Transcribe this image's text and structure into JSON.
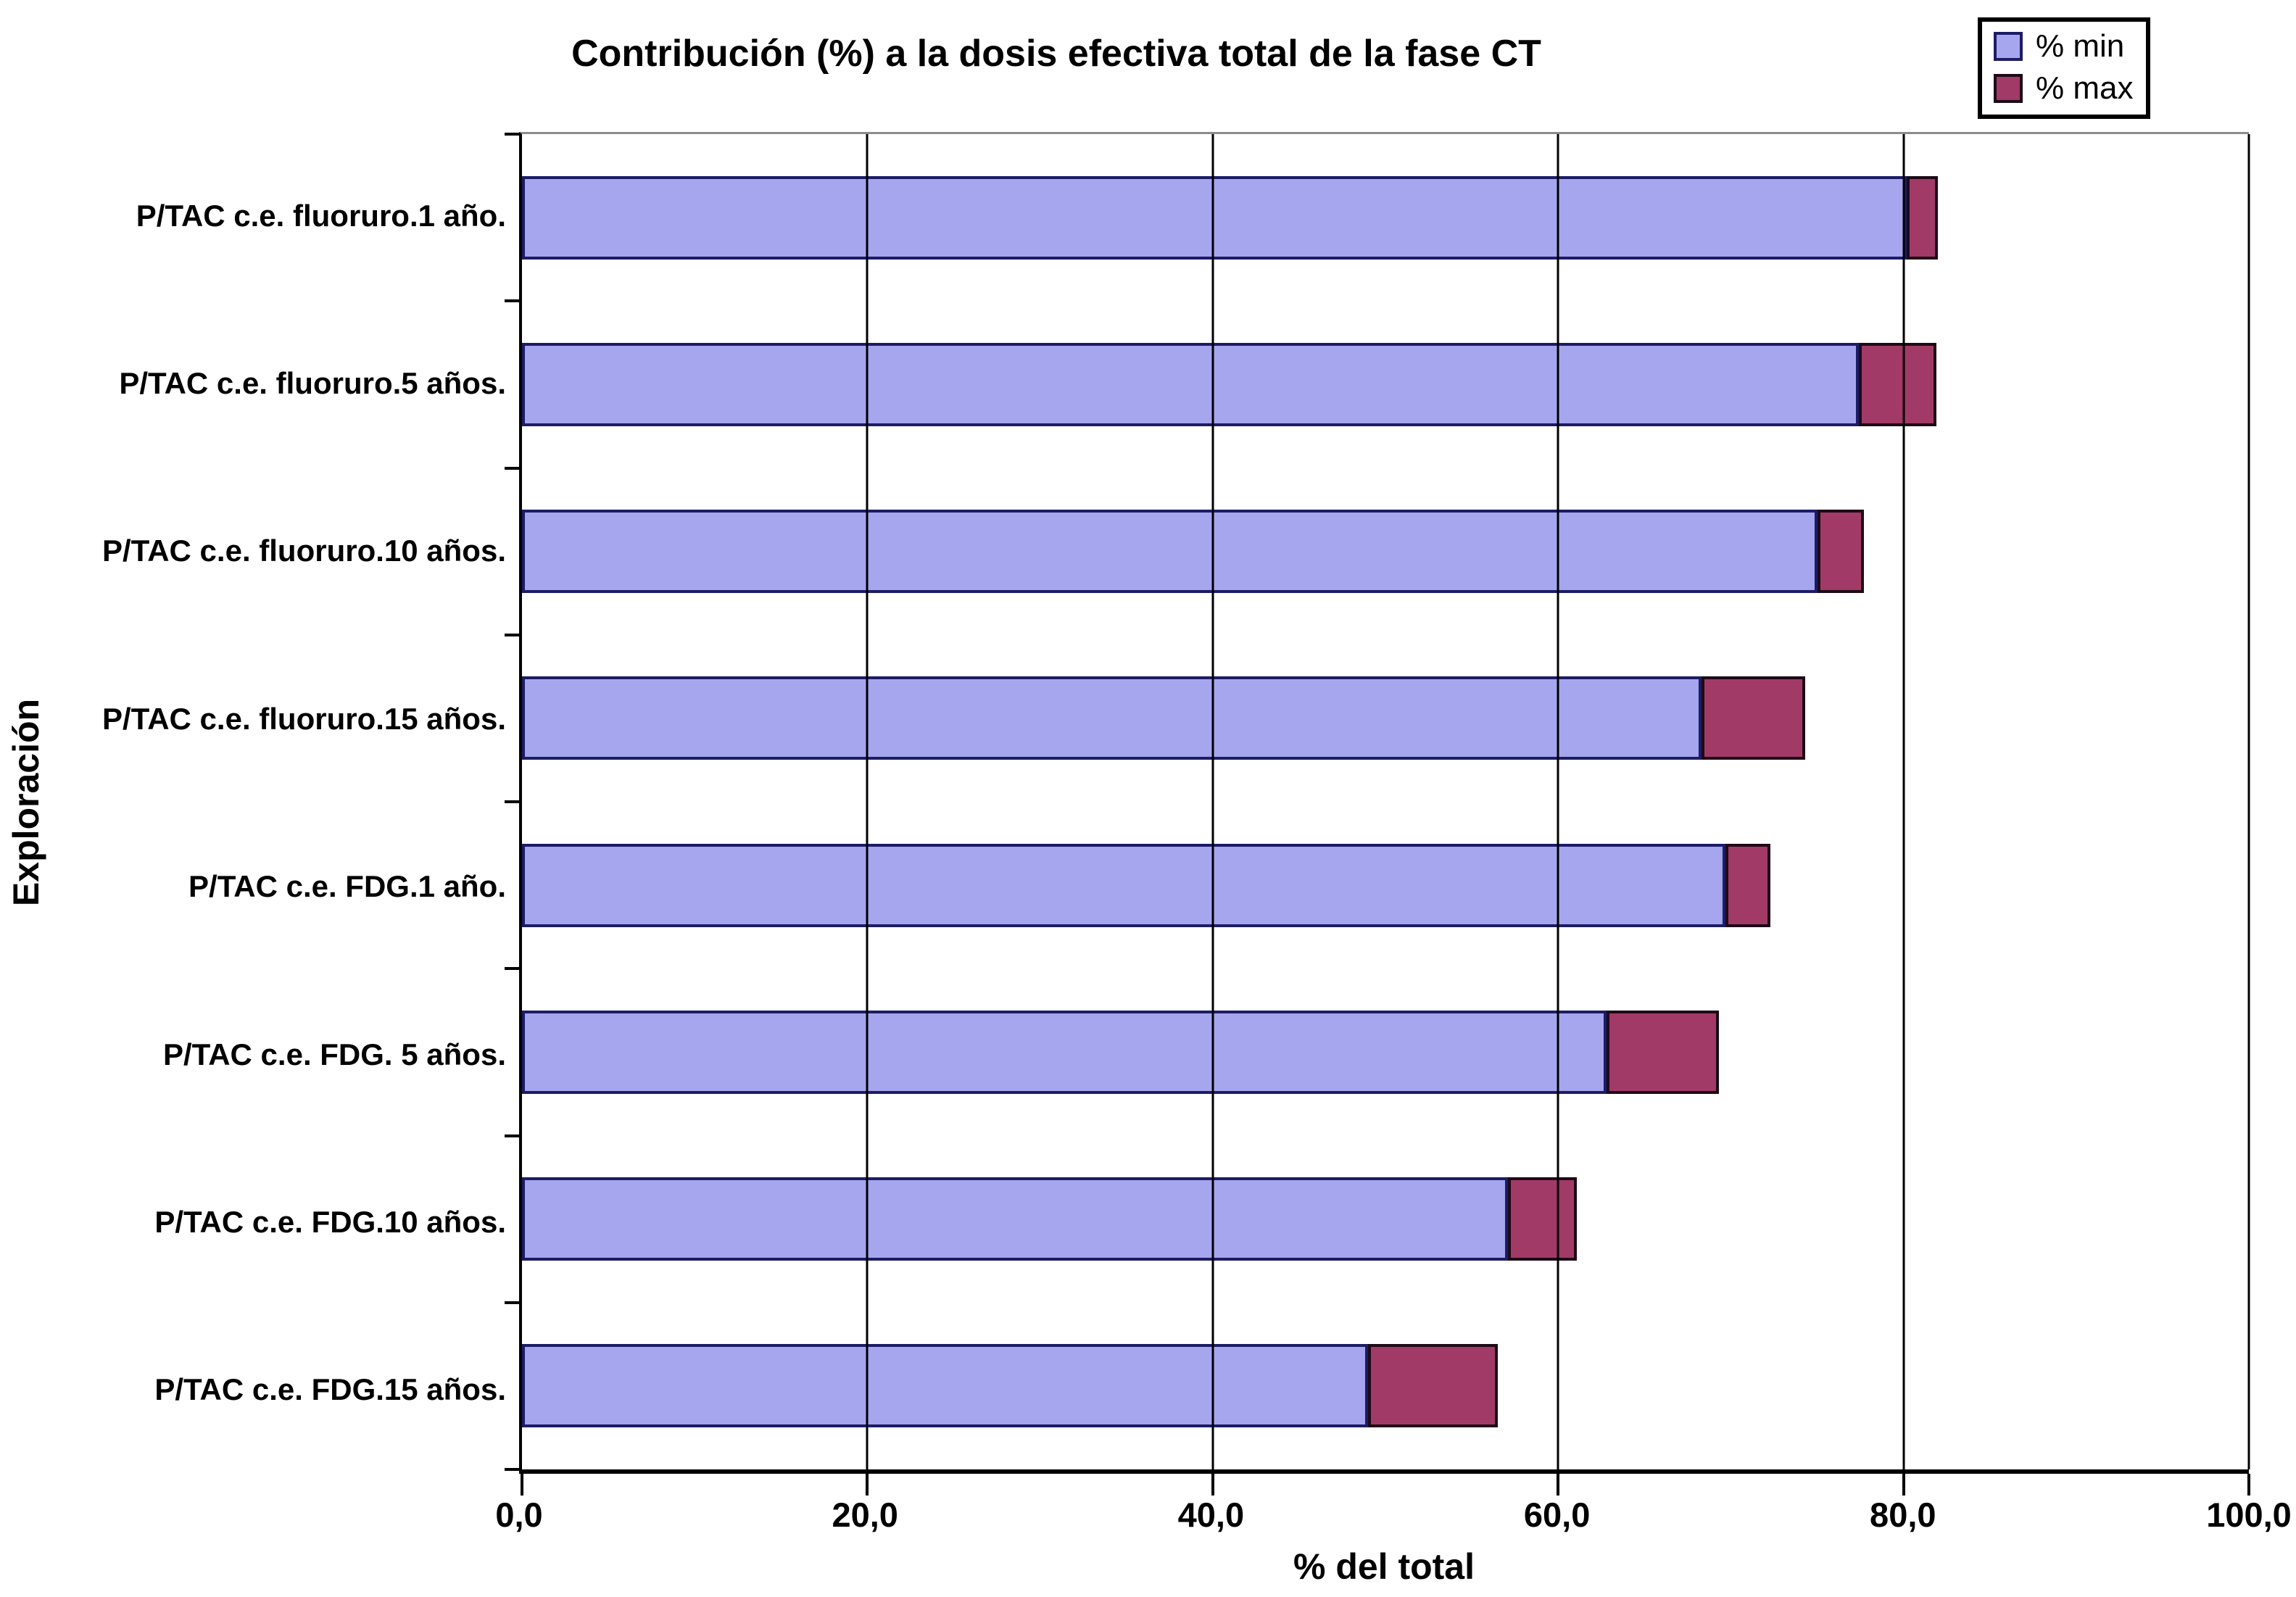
{
  "chart_data": {
    "type": "bar",
    "orientation": "horizontal",
    "stacked": true,
    "title": "Contribución (%) a la dosis efectiva total de la fase CT",
    "xlabel": "% del total",
    "ylabel": "Exploración",
    "xlim": [
      0,
      100
    ],
    "grid": "vertical",
    "legend_position": "top-right",
    "x_ticks": [
      {
        "value": 0,
        "label": "0,0"
      },
      {
        "value": 20,
        "label": "20,0"
      },
      {
        "value": 40,
        "label": "40,0"
      },
      {
        "value": 60,
        "label": "60,0"
      },
      {
        "value": 80,
        "label": "80,0"
      },
      {
        "value": 100,
        "label": "100,0"
      }
    ],
    "categories": [
      "P/TAC c.e. fluoruro.1 año.",
      "P/TAC c.e. fluoruro.5 años.",
      "P/TAC c.e. fluoruro.10 años.",
      "P/TAC c.e. fluoruro.15 años.",
      "P/TAC c.e. FDG.1 año.",
      "P/TAC c.e. FDG. 5 años.",
      "P/TAC c.e. FDG.10 años.",
      "P/TAC c.e. FDG.15 años."
    ],
    "series": [
      {
        "name": "% min",
        "color": "#a6a6ef",
        "border_color": "#1c1c66",
        "values": [
          80.2,
          77.4,
          75.0,
          68.3,
          69.7,
          62.8,
          57.1,
          49.0
        ]
      },
      {
        "name": "% max",
        "color": "#a23a67",
        "border_color": "#1d0a16",
        "values": [
          1.8,
          4.5,
          2.7,
          6.0,
          2.6,
          6.5,
          4.0,
          7.5
        ],
        "note": "segment widths stacked after % min"
      }
    ],
    "stack_end_values": [
      82.0,
      81.9,
      77.7,
      74.3,
      72.3,
      69.3,
      61.1,
      56.5
    ]
  },
  "colors": {
    "gridline": "#000000",
    "axis": "#000000",
    "plot_top_border": "#8c8c8c",
    "background": "#ffffff"
  }
}
